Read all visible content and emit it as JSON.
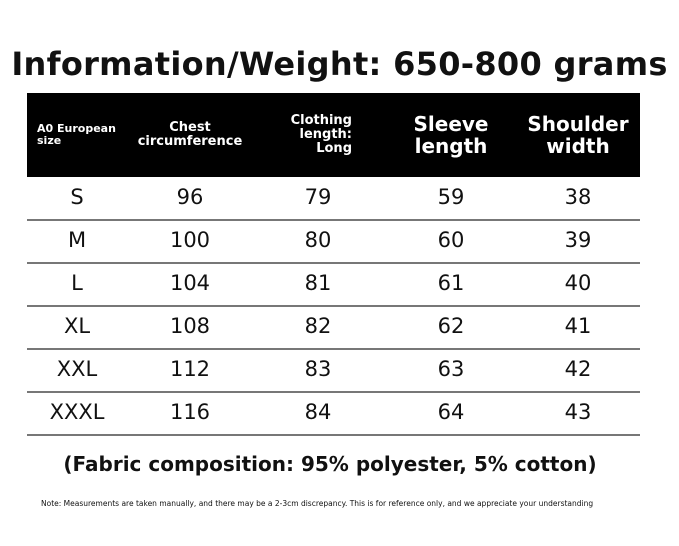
{
  "title": "Information/Weight: 650-800 grams",
  "table": {
    "header": [
      "A0 European size",
      "Chest circumference",
      "Clothing length: Long",
      "Sleeve length",
      "Shoulder width"
    ],
    "rows": [
      [
        "S",
        96,
        79,
        59,
        38
      ],
      [
        "M",
        100,
        80,
        60,
        39
      ],
      [
        "L",
        104,
        81,
        61,
        40
      ],
      [
        "XL",
        108,
        82,
        62,
        41
      ],
      [
        "XXL",
        112,
        83,
        63,
        42
      ],
      [
        "XXXL",
        116,
        84,
        64,
        43
      ]
    ]
  },
  "fabric": "(Fabric composition: 95% polyester, 5% cotton)",
  "note": "Note: Measurements are taken manually, and there may be a 2-3cm discrepancy. This is for reference only, and we appreciate your understanding"
}
